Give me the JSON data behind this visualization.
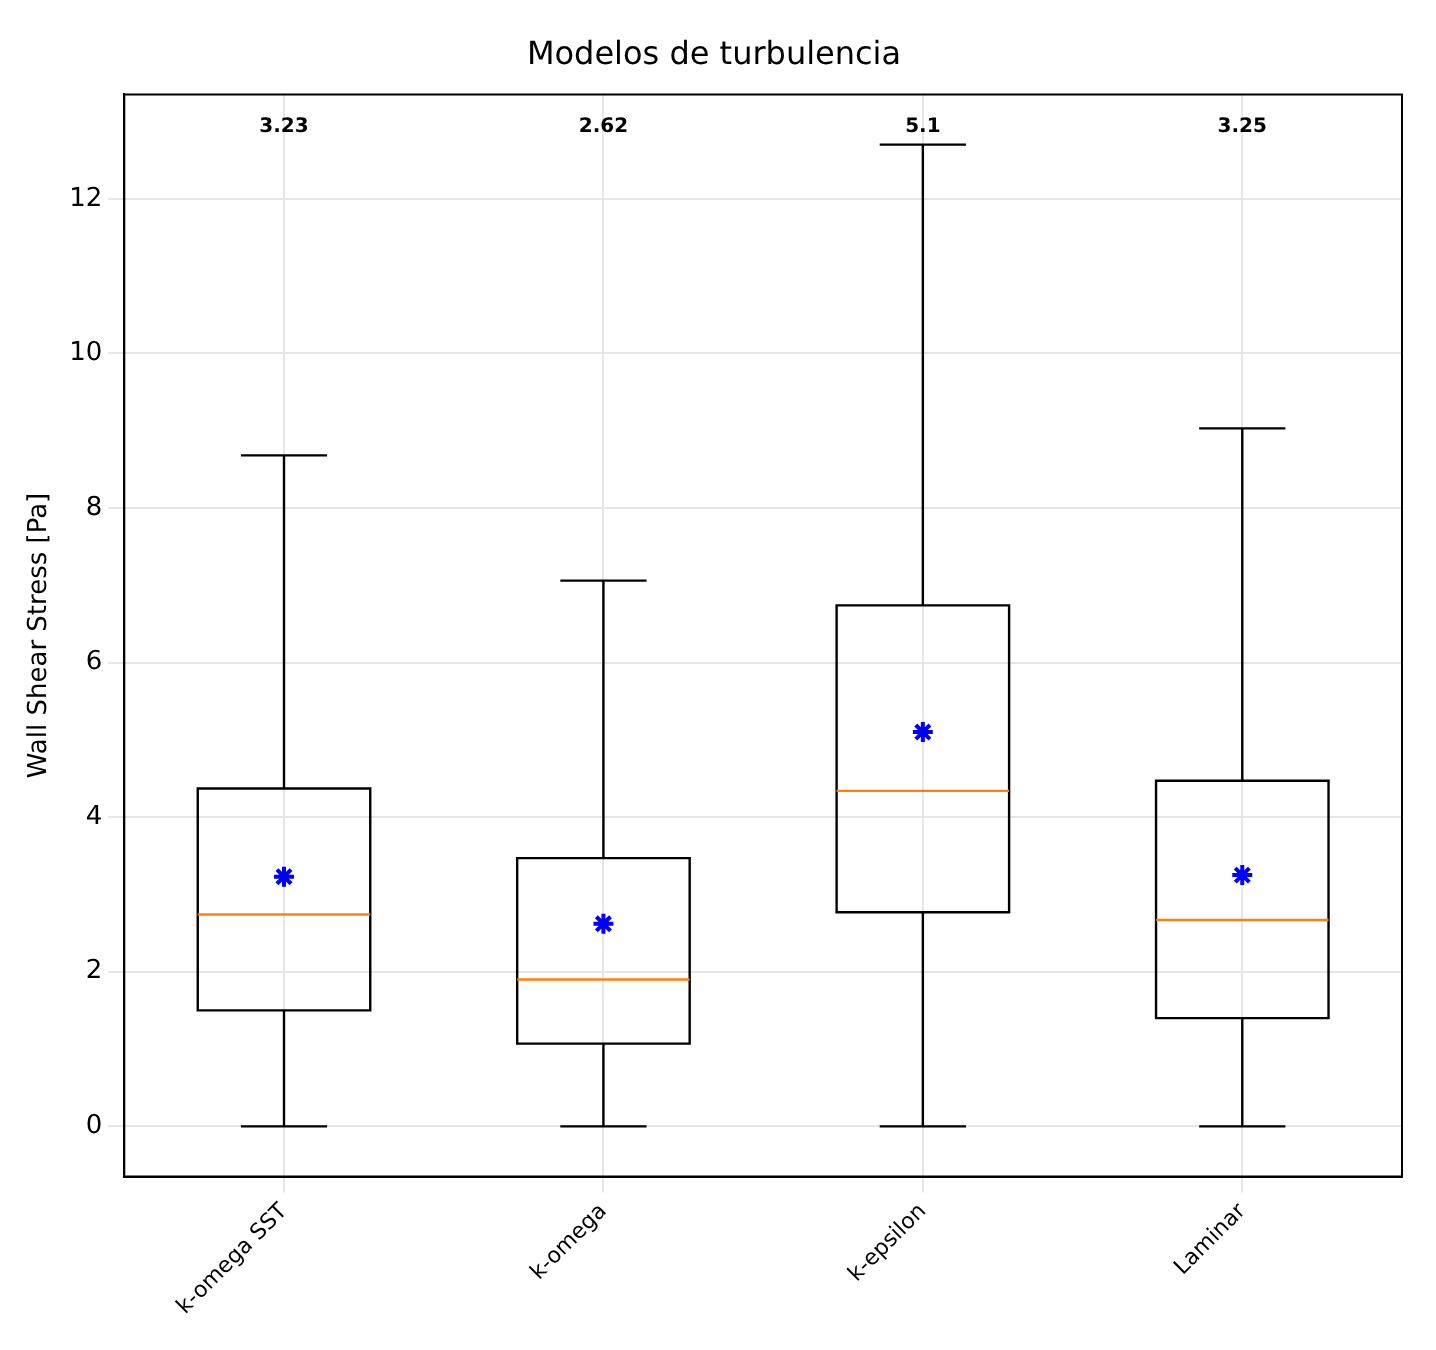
{
  "chart_data": {
    "type": "box",
    "title": "Modelos de turbulencia",
    "ylabel": "Wall Shear Stress [Pa]",
    "categories": [
      "k-omega SST",
      "k-omega",
      "k-epsilon",
      "Laminar"
    ],
    "series": [
      {
        "color": "#000000",
        "boxes": [
          {
            "low": 0,
            "q1": 1.5,
            "median": 2.74,
            "q3": 4.37,
            "high": 8.68,
            "mean": 3.23
          },
          {
            "low": 0,
            "q1": 1.07,
            "median": 1.9,
            "q3": 3.47,
            "high": 7.06,
            "mean": 2.62
          },
          {
            "low": 0,
            "q1": 2.77,
            "median": 4.34,
            "q3": 6.74,
            "high": 12.7,
            "mean": 5.1
          },
          {
            "low": 0,
            "q1": 1.4,
            "median": 2.67,
            "q3": 4.47,
            "high": 9.03,
            "mean": 3.25
          }
        ]
      }
    ],
    "value_labels": [
      "3.23",
      "2.62",
      "5.1",
      "3.25"
    ],
    "ylim": [
      -0.65,
      13.35
    ],
    "yticks": [
      0,
      2,
      4,
      6,
      8,
      10,
      12
    ],
    "grid": true,
    "marker": "star"
  }
}
